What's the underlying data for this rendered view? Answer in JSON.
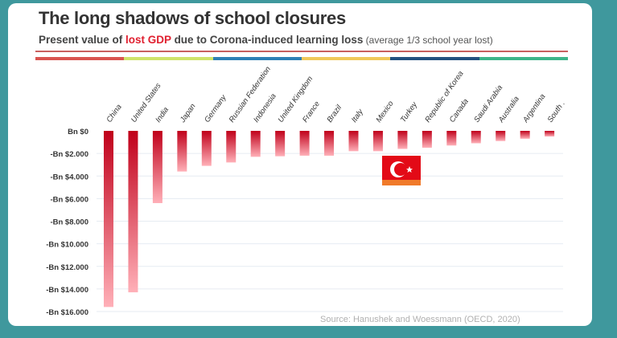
{
  "title": "The long shadows of school closures",
  "subtitle": {
    "part1": "Present value of ",
    "highlight": "lost GDP",
    "part2": " due to Corona-induced learning loss",
    "note": " (average 1/3 school year lost)"
  },
  "stripe_colors": [
    "#d9534f",
    "#cfe36a",
    "#2f7fb5",
    "#f0c85a",
    "#23507f",
    "#3eb489"
  ],
  "source": "Source: Hanushek and Woessmann (OECD, 2020)",
  "flag_icon": "turkey-flag",
  "chart_data": {
    "type": "bar",
    "title": "The long shadows of school closures",
    "xlabel": "",
    "ylabel": "",
    "categories": [
      "China",
      "United States",
      "India",
      "Japan",
      "Germany",
      "Russian Federation",
      "Indonesia",
      "United Kingdom",
      "France",
      "Brazil",
      "Italy",
      "Mexico",
      "Turkey",
      "Republic of Korea",
      "Canada",
      "Saudi Arabia",
      "Australia",
      "Argentina",
      "South ."
    ],
    "values": [
      -15600,
      -14300,
      -6400,
      -3600,
      -3100,
      -2800,
      -2300,
      -2250,
      -2200,
      -2200,
      -1800,
      -1800,
      -1600,
      -1500,
      -1300,
      -1100,
      -900,
      -700,
      -500
    ],
    "ylim": [
      -16000,
      0
    ],
    "yticks": [
      0,
      -2000,
      -4000,
      -6000,
      -8000,
      -10000,
      -12000,
      -14000,
      -16000
    ],
    "ytick_labels": [
      "Bn $0",
      "-Bn $2.000",
      "-Bn $4.000",
      "-Bn $6.000",
      "-Bn $8.000",
      "-Bn $10.000",
      "-Bn $12.000",
      "-Bn $14.000",
      "-Bn $16.000"
    ],
    "grid": true,
    "bar_colors": {
      "top": "#c0001a",
      "bottom": "#ffb0b8"
    }
  }
}
